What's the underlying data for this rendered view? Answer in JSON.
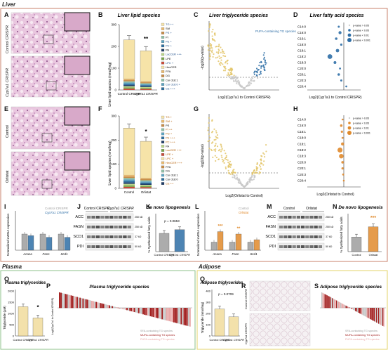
{
  "sections": {
    "liver": "Liver",
    "plasma": "Plasma",
    "adipose": "Adipose"
  },
  "panels": [
    "A",
    "B",
    "C",
    "D",
    "E",
    "F",
    "G",
    "H",
    "I",
    "J",
    "K",
    "L",
    "M",
    "N",
    "O",
    "P",
    "Q",
    "R",
    "S"
  ],
  "row1": {
    "histo_labels": [
      "Control CRISPR",
      "Cyp7a1 CRISPR"
    ],
    "b_title": "Liver lipid species",
    "b_ylabel": "Liver lipid species (nmol/mg)",
    "b_groups": [
      "Control CRISPR",
      "Cyp7a1 CRISPR"
    ],
    "b_sig": "**",
    "b_legend": [
      "TG ++",
      "SM",
      "PS +",
      "PI",
      "PE +",
      "PC +",
      "PA",
      "LacCER +++",
      "LPE",
      "LPC +",
      "HexCER",
      "FFA",
      "DG",
      "Cer d18:1",
      "Cer d18:0 +",
      "CE +++"
    ],
    "c_title": "Liver triglyceride species",
    "c_annot": "PUFA-containing TG species",
    "c_xlabel": "Log2(Cyp7a1 to Control CRISPR)",
    "c_ylabel": "-log10(p-value)",
    "d_title": "Liver fatty acid species",
    "d_species": [
      "C14:0",
      "C16:0",
      "C16:1",
      "C18:0",
      "C18:1",
      "C18:2",
      "C18:3",
      "C20:0",
      "C20:1",
      "C20:3",
      "C20:4"
    ],
    "d_xlabel": "Log2(Cyp7a1 to Control CRISPR)",
    "d_legend": [
      "p-value > 0.05",
      "p-value < 0.05",
      "p-value < 0.01",
      "p-value < 0.001"
    ]
  },
  "row2": {
    "histo_labels": [
      "Control",
      "Orlistat"
    ],
    "f_groups": [
      "Control",
      "Orlistat"
    ],
    "f_sig": "*",
    "f_ylabel": "Liver lipid species (nmol/mg)",
    "f_legend": [
      "TG +",
      "SM +",
      "PS",
      "PI ++",
      "PG +",
      "PE +++",
      "PC +++",
      "PA",
      "LacCER +++",
      "LPE +",
      "LPC +",
      "HexCER +++",
      "FFA",
      "DG",
      "Cer d18:1",
      "Cer d18:0",
      "CE ++"
    ],
    "g_xlabel": "Log2(Orlistat to Control)",
    "g_ylabel": "-log10(p-value)",
    "h_species": [
      "C14:0",
      "C16:0",
      "C16:1",
      "C18:0",
      "C18:1",
      "C18:2",
      "C18:3",
      "C20:0",
      "C20:1",
      "C20:3",
      "C20:4"
    ],
    "h_xlabel": "Log2(Orlistat to Control)",
    "h_legend": [
      "p-value > 0.05",
      "p-value < 0.05",
      "p-value < 0.01",
      "p-value < 0.001"
    ]
  },
  "row3": {
    "i_ylabel": "Normalized mRNA expression",
    "i_legend": [
      "Control CRISPR",
      "Cyp7a1 CRISPR"
    ],
    "genes": [
      "Acaca",
      "Fasn",
      "Scd1"
    ],
    "j_groups": [
      "Control CRISPR",
      "Cyp7a1 CRISPR"
    ],
    "blots": [
      "ACC",
      "FASN",
      "SCD1",
      "PDI"
    ],
    "kda": [
      "250 kD",
      "250 kD",
      "37 kD",
      "50 kD"
    ],
    "k_title": "De novo lipogenesis",
    "k_ylabel": "% Synthesized fatty acids",
    "k_p": "p = 0.0653",
    "k_groups": [
      "Control CRISPR",
      "Cyp7a1 CRISPR"
    ],
    "l_legend": [
      "Control",
      "Orlistat"
    ],
    "l_sig": [
      "***",
      "**"
    ],
    "m_groups": [
      "Control",
      "Orlistat"
    ],
    "n_title": "De novo lipogenesis",
    "n_sig": "***",
    "n_groups": [
      "Control",
      "Orlistat"
    ]
  },
  "row4": {
    "o_title": "Plasma triglycerides",
    "o_ylabel": "Triglyceride (µM)",
    "o_sig": "*",
    "o_groups": [
      "Control CRISPR",
      "Cyp7a1 CRISPR"
    ],
    "p_title": "Plasma triglyceride species",
    "p_ylabel": "Log2(Cyp7a1 to Control CRISPR)",
    "p_legend": [
      "SFA-containing TG species",
      "MUFA-containing TG species",
      "PUFA-containing TG species"
    ],
    "q_title": "Adipose triglycerides",
    "q_p": "p = 0.0709",
    "q_ylabel": "Triglyceride (nmol/mg)",
    "q_groups": [
      "Control CRISPR",
      "Cyp7a1 CRISPR"
    ],
    "r_labels": [
      "Control CRISPR",
      "Cyp7a1 CRISPR"
    ],
    "s_title": "Adipose triglyceride species",
    "s_legend": [
      "SFA-containing TG species",
      "MUFA-containing TG species",
      "PUFA-containing TG species"
    ]
  },
  "colors": {
    "liver_border": "#c9826b",
    "plasma_border": "#8cc08a",
    "adipose_border": "#e3d36a",
    "control_gray": "#9e9e9e",
    "cyp_blue": "#2e6ea6",
    "orlistat_orange": "#e08a2c",
    "tg_yellow": "#f6e3a8",
    "histo_pink": "#d9a3c7",
    "mufa_red": "#a32020"
  },
  "chart_data": [
    {
      "type": "bar",
      "panel": "B",
      "categories": [
        "Control CRISPR",
        "Cyp7a1 CRISPR"
      ],
      "series": [
        {
          "name": "Total",
          "values": [
            230,
            180
          ]
        }
      ],
      "ylim": [
        0,
        300
      ],
      "ticks": [
        0,
        100,
        200,
        300
      ]
    },
    {
      "type": "bar",
      "panel": "F",
      "categories": [
        "Control",
        "Orlistat"
      ],
      "series": [
        {
          "name": "Total",
          "values": [
            250,
            195
          ]
        }
      ],
      "ylim": [
        0,
        300
      ],
      "ticks": [
        0,
        100,
        200,
        300
      ]
    },
    {
      "type": "bar",
      "panel": "I",
      "categories": [
        "Acaca",
        "Fasn",
        "Scd1"
      ],
      "series": [
        {
          "name": "Control CRISPR",
          "values": [
            1.0,
            1.0,
            1.0
          ]
        },
        {
          "name": "Cyp7a1 CRISPR",
          "values": [
            0.9,
            0.8,
            0.8
          ]
        }
      ],
      "ylim": [
        0,
        2.0
      ]
    },
    {
      "type": "bar",
      "panel": "K",
      "categories": [
        "Control CRISPR",
        "Cyp7a1 CRISPR"
      ],
      "values": [
        3.0,
        3.6
      ],
      "ylim": [
        0,
        6
      ]
    },
    {
      "type": "bar",
      "panel": "L",
      "categories": [
        "Acaca",
        "Fasn",
        "Scd1"
      ],
      "series": [
        {
          "name": "Control",
          "values": [
            1.0,
            1.0,
            1.0
          ]
        },
        {
          "name": "Orlistat",
          "values": [
            2.3,
            2.0,
            1.3
          ]
        }
      ],
      "ylim": [
        0,
        4
      ]
    },
    {
      "type": "bar",
      "panel": "N",
      "categories": [
        "Control",
        "Orlistat"
      ],
      "values": [
        2.0,
        3.4
      ],
      "ylim": [
        0,
        5
      ]
    },
    {
      "type": "bar",
      "panel": "O",
      "categories": [
        "Control CRISPR",
        "Cyp7a1 CRISPR"
      ],
      "values": [
        1300,
        800
      ],
      "ylim": [
        0,
        2000
      ],
      "ticks": [
        0,
        500,
        1000,
        1500,
        2000
      ]
    },
    {
      "type": "bar",
      "panel": "Q",
      "categories": [
        "Control CRISPR",
        "Cyp7a1 CRISPR"
      ],
      "values": [
        240,
        170
      ],
      "ylim": [
        0,
        400
      ],
      "ticks": [
        0,
        100,
        200,
        300,
        400
      ]
    }
  ]
}
